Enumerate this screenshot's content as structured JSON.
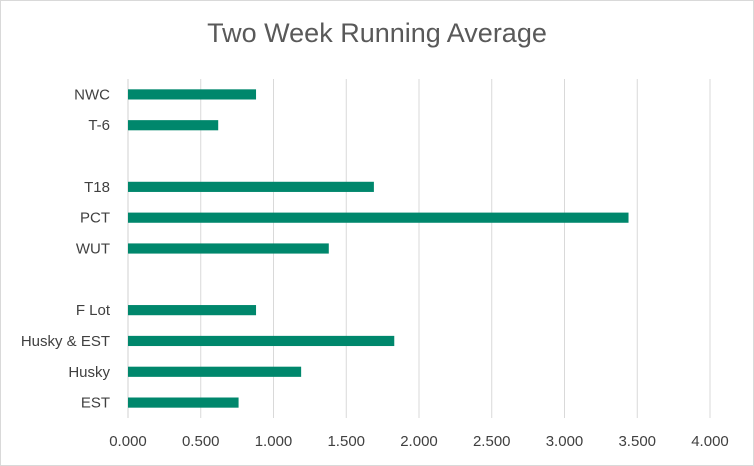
{
  "chart_data": {
    "type": "bar",
    "orientation": "horizontal",
    "title": "Two Week Running Average",
    "xlabel": "",
    "ylabel": "",
    "categories": [
      "NWC",
      "T-6",
      "",
      "T18",
      "PCT",
      "WUT",
      "",
      "F Lot",
      "Husky & EST",
      "Husky",
      "EST"
    ],
    "values": [
      0.88,
      0.62,
      null,
      1.69,
      3.44,
      1.38,
      null,
      0.88,
      1.83,
      1.19,
      0.76
    ],
    "xlim": [
      0,
      4
    ],
    "xticks": [
      "0.000",
      "0.500",
      "1.000",
      "1.500",
      "2.000",
      "2.500",
      "3.000",
      "3.500",
      "4.000"
    ],
    "xtick_values": [
      0,
      0.5,
      1,
      1.5,
      2,
      2.5,
      3,
      3.5,
      4
    ],
    "grid": "vertical",
    "legend": "none",
    "bar_color": "#00876c",
    "grid_color": "#d9d9d9"
  }
}
